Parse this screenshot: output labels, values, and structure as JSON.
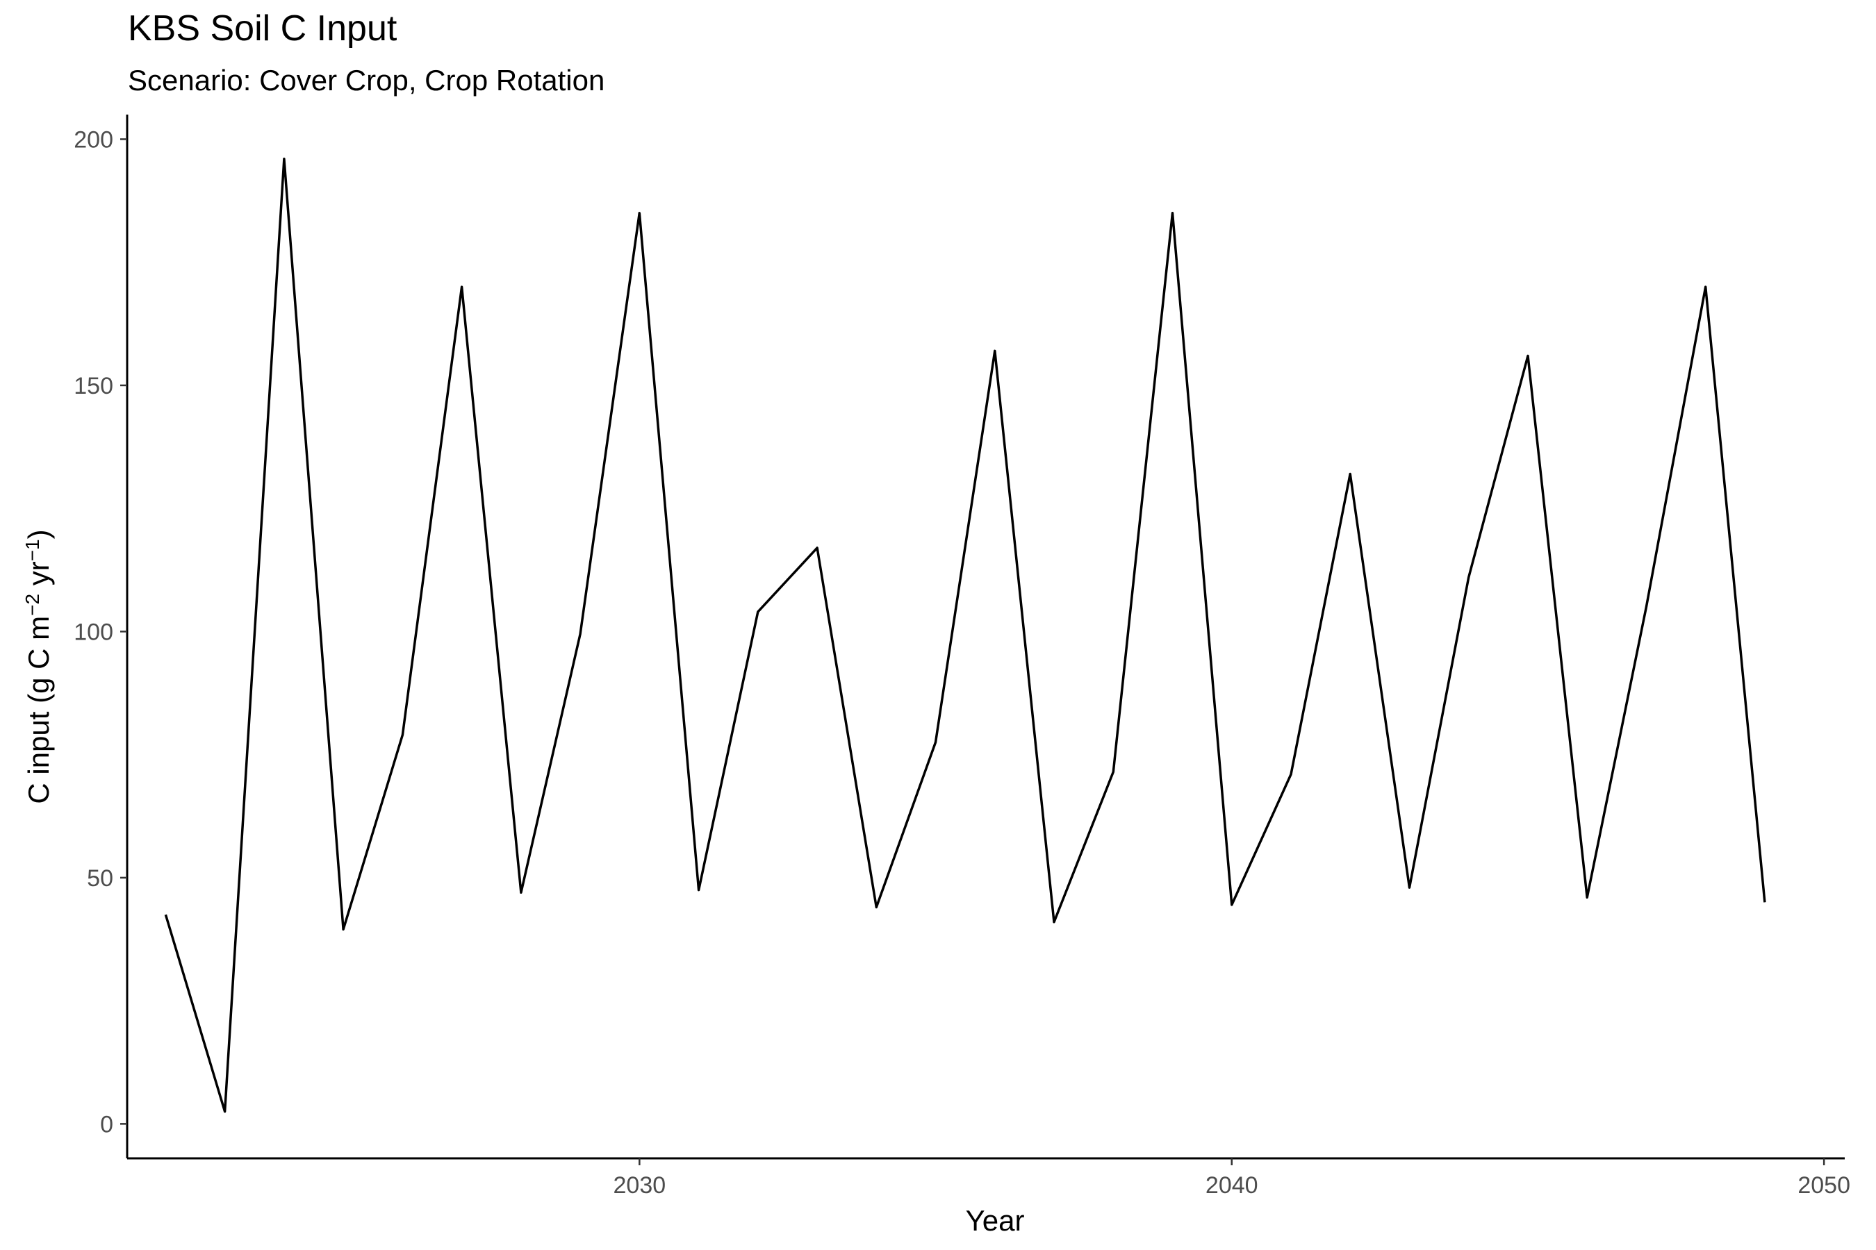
{
  "chart_data": {
    "type": "line",
    "title": "KBS Soil C Input",
    "subtitle": "Scenario: Cover Crop, Crop Rotation",
    "xlabel": "Year",
    "ylabel_parts": [
      "C input (g C m",
      "−2",
      " yr",
      "−1",
      ")"
    ],
    "xlim": [
      2021.35,
      2050.35
    ],
    "ylim": [
      -7,
      205
    ],
    "x_ticks": [
      2030,
      2040,
      2050
    ],
    "y_ticks": [
      0,
      50,
      100,
      150,
      200
    ],
    "x_tick_labels": [
      "2030",
      "2040",
      "2050"
    ],
    "y_tick_labels": [
      "0",
      "50",
      "100",
      "150",
      "200"
    ],
    "grid": false,
    "legend": "none",
    "series": [
      {
        "color": "#000000",
        "x": [
          2022,
          2023,
          2024,
          2025,
          2026,
          2027,
          2028,
          2029,
          2030,
          2031,
          2032,
          2033,
          2034,
          2035,
          2036,
          2037,
          2038,
          2039,
          2040,
          2041,
          2042,
          2043,
          2044,
          2045,
          2046,
          2047,
          2048,
          2049
        ],
        "values": [
          42.5,
          2.5,
          196,
          39.5,
          79,
          170,
          47,
          99.5,
          185,
          47.5,
          104,
          117,
          44,
          77.5,
          157,
          41,
          71.5,
          185,
          44.5,
          71,
          132,
          48,
          111,
          156,
          46,
          105,
          170,
          45
        ]
      }
    ]
  }
}
